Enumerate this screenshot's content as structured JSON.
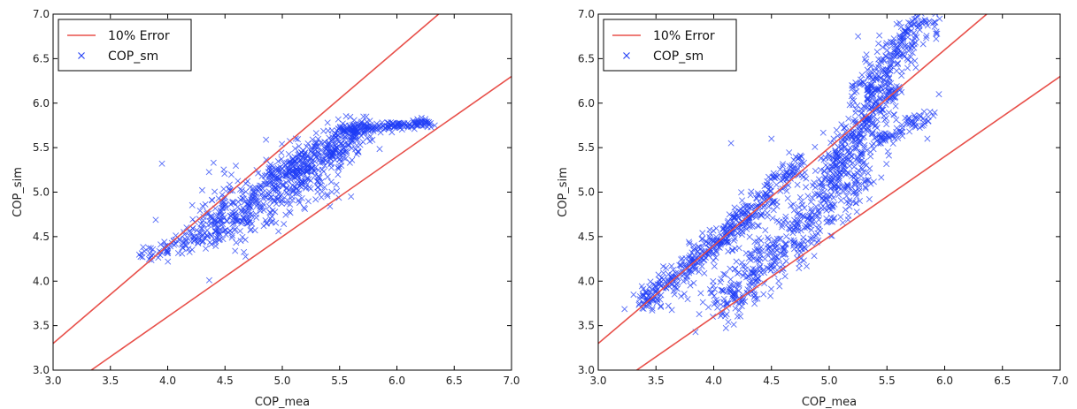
{
  "chart_data": [
    {
      "type": "scatter",
      "xlabel": "COP_mea",
      "ylabel": "COP_sim",
      "xlim": [
        3.0,
        7.0
      ],
      "ylim": [
        3.0,
        7.0
      ],
      "xticks": [
        "3.0",
        "3.5",
        "4.0",
        "4.5",
        "5.0",
        "5.5",
        "6.0",
        "6.5",
        "7.0"
      ],
      "yticks": [
        "3.0",
        "3.5",
        "4.0",
        "4.5",
        "5.0",
        "5.5",
        "6.0",
        "6.5",
        "7.0"
      ],
      "grid": false,
      "legend_position": "top-left",
      "series": [
        {
          "name": "10% Error",
          "kind": "line",
          "color": "#e8504a",
          "lines": [
            {
              "x": [
                3.0,
                6.364
              ],
              "y": [
                3.3,
                7.0
              ]
            },
            {
              "x": [
                3.333,
                7.0
              ],
              "y": [
                3.0,
                6.3
              ]
            }
          ]
        },
        {
          "name": "COP_sm",
          "kind": "scatter",
          "marker": "x",
          "color": "#1f3cf5",
          "clusters": [
            {
              "x0": 4.3,
              "y0": 4.55,
              "x1": 5.3,
              "y1": 5.25,
              "spread": 0.28,
              "n": 420
            },
            {
              "x0": 5.0,
              "y0": 5.2,
              "x1": 5.7,
              "y1": 5.7,
              "spread": 0.18,
              "n": 320
            },
            {
              "x0": 5.5,
              "y0": 5.7,
              "x1": 6.3,
              "y1": 5.78,
              "spread": 0.05,
              "n": 160
            },
            {
              "x0": 3.8,
              "y0": 4.25,
              "x1": 4.45,
              "y1": 4.6,
              "spread": 0.12,
              "n": 90
            }
          ],
          "outliers": [
            {
              "x": 3.95,
              "y": 5.32
            },
            {
              "x": 4.4,
              "y": 5.33
            },
            {
              "x": 5.6,
              "y": 4.95
            },
            {
              "x": 3.78,
              "y": 4.27
            }
          ]
        }
      ]
    },
    {
      "type": "scatter",
      "xlabel": "COP_mea",
      "ylabel": "COP_sim",
      "xlim": [
        3.0,
        7.0
      ],
      "ylim": [
        3.0,
        7.0
      ],
      "xticks": [
        "3.0",
        "3.5",
        "4.0",
        "4.5",
        "5.0",
        "5.5",
        "6.0",
        "6.5",
        "7.0"
      ],
      "yticks": [
        "3.0",
        "3.5",
        "4.0",
        "4.5",
        "5.0",
        "5.5",
        "6.0",
        "6.5",
        "7.0"
      ],
      "grid": false,
      "legend_position": "top-left",
      "series": [
        {
          "name": "10% Error",
          "kind": "line",
          "color": "#e8504a",
          "lines": [
            {
              "x": [
                3.0,
                6.364
              ],
              "y": [
                3.3,
                7.0
              ]
            },
            {
              "x": [
                3.333,
                7.0
              ],
              "y": [
                3.0,
                6.3
              ]
            }
          ]
        },
        {
          "name": "COP_sm",
          "kind": "scatter",
          "marker": "x",
          "color": "#1f3cf5",
          "clusters": [
            {
              "x0": 3.35,
              "y0": 3.7,
              "x1": 4.3,
              "y1": 4.75,
              "spread": 0.12,
              "n": 320
            },
            {
              "x0": 4.0,
              "y0": 3.65,
              "x1": 5.3,
              "y1": 5.3,
              "spread": 0.22,
              "n": 480
            },
            {
              "x0": 4.2,
              "y0": 4.6,
              "x1": 4.75,
              "y1": 5.35,
              "spread": 0.12,
              "n": 160
            },
            {
              "x0": 5.0,
              "y0": 5.1,
              "x1": 5.5,
              "y1": 6.2,
              "spread": 0.18,
              "n": 320
            },
            {
              "x0": 5.3,
              "y0": 6.1,
              "x1": 5.85,
              "y1": 7.0,
              "spread": 0.15,
              "n": 220
            },
            {
              "x0": 5.4,
              "y0": 5.55,
              "x1": 5.9,
              "y1": 5.9,
              "spread": 0.07,
              "n": 70
            }
          ],
          "outliers": [
            {
              "x": 4.5,
              "y": 5.6
            },
            {
              "x": 5.95,
              "y": 6.1
            },
            {
              "x": 5.85,
              "y": 5.6
            },
            {
              "x": 5.75,
              "y": 6.4
            },
            {
              "x": 5.25,
              "y": 6.75
            },
            {
              "x": 4.15,
              "y": 5.55
            }
          ]
        }
      ]
    }
  ]
}
